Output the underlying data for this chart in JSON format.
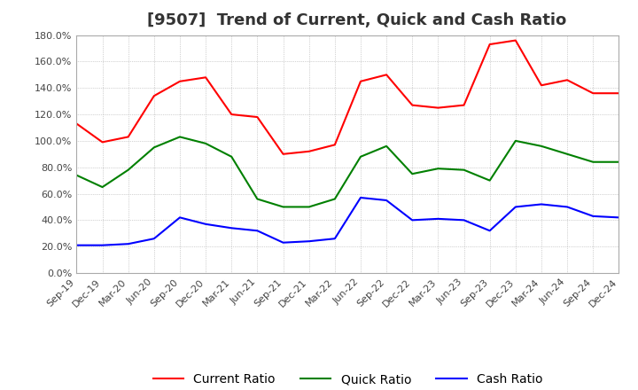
{
  "title": "[9507]  Trend of Current, Quick and Cash Ratio",
  "x_labels": [
    "Sep-19",
    "Dec-19",
    "Mar-20",
    "Jun-20",
    "Sep-20",
    "Dec-20",
    "Mar-21",
    "Jun-21",
    "Sep-21",
    "Dec-21",
    "Mar-22",
    "Jun-22",
    "Sep-22",
    "Dec-22",
    "Mar-23",
    "Jun-23",
    "Sep-23",
    "Dec-23",
    "Mar-24",
    "Jun-24",
    "Sep-24",
    "Dec-24"
  ],
  "current_ratio": [
    113.0,
    99.0,
    103.0,
    134.0,
    145.0,
    148.0,
    120.0,
    118.0,
    90.0,
    92.0,
    97.0,
    145.0,
    150.0,
    127.0,
    125.0,
    127.0,
    173.0,
    176.0,
    142.0,
    146.0,
    136.0,
    136.0
  ],
  "quick_ratio": [
    74.0,
    65.0,
    78.0,
    95.0,
    103.0,
    98.0,
    88.0,
    56.0,
    50.0,
    50.0,
    56.0,
    88.0,
    96.0,
    75.0,
    79.0,
    78.0,
    70.0,
    100.0,
    96.0,
    90.0,
    84.0,
    84.0
  ],
  "cash_ratio": [
    21.0,
    21.0,
    22.0,
    26.0,
    42.0,
    37.0,
    34.0,
    32.0,
    23.0,
    24.0,
    26.0,
    57.0,
    55.0,
    40.0,
    41.0,
    40.0,
    32.0,
    50.0,
    52.0,
    50.0,
    43.0,
    42.0
  ],
  "current_color": "#ff0000",
  "quick_color": "#008000",
  "cash_color": "#0000ff",
  "ylim": [
    0,
    180.0
  ],
  "ytick_step": 20.0,
  "background_color": "#ffffff",
  "plot_bg_color": "#ffffff",
  "grid_color": "#aaaaaa",
  "title_fontsize": 13,
  "legend_fontsize": 10
}
